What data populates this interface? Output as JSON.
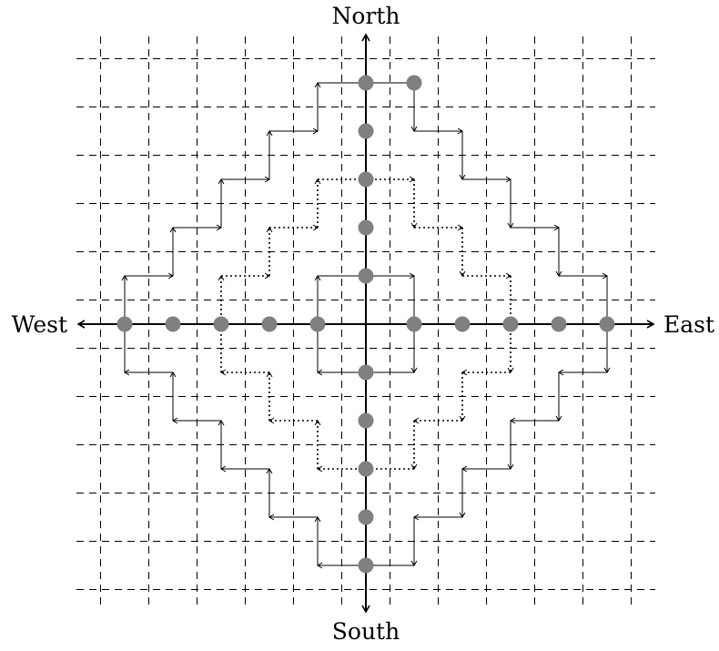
{
  "labels": {
    "north": "North",
    "south": "South",
    "east": "East",
    "west": "West"
  },
  "grid": {
    "min": -5,
    "max": 5,
    "step": 1
  },
  "colors": {
    "axis": "#000000",
    "grid": "#000000",
    "dot": "#808080",
    "path": "#000000"
  },
  "dots": {
    "north": [
      1,
      2,
      3,
      4,
      5
    ],
    "south": [
      1,
      2,
      3,
      4,
      5
    ],
    "east": [
      1,
      2,
      3,
      4,
      5
    ],
    "west": [
      1,
      2,
      3,
      4,
      5
    ],
    "extra": [
      [
        1,
        5
      ]
    ]
  },
  "paths": {
    "outer": {
      "style": "solid",
      "points": [
        [
          0,
          5
        ],
        [
          1,
          5
        ],
        [
          1,
          4
        ],
        [
          2,
          4
        ],
        [
          2,
          3
        ],
        [
          3,
          3
        ],
        [
          3,
          2
        ],
        [
          4,
          2
        ],
        [
          4,
          1
        ],
        [
          5,
          1
        ],
        [
          5,
          0
        ],
        [
          5,
          -1
        ],
        [
          4,
          -1
        ],
        [
          4,
          -2
        ],
        [
          3,
          -2
        ],
        [
          3,
          -3
        ],
        [
          2,
          -3
        ],
        [
          2,
          -4
        ],
        [
          1,
          -4
        ],
        [
          1,
          -5
        ],
        [
          0,
          -5
        ],
        [
          -1,
          -5
        ],
        [
          -1,
          -4
        ],
        [
          -2,
          -4
        ],
        [
          -2,
          -3
        ],
        [
          -3,
          -3
        ],
        [
          -3,
          -2
        ],
        [
          -4,
          -2
        ],
        [
          -4,
          -1
        ],
        [
          -5,
          -1
        ],
        [
          -5,
          0
        ],
        [
          -5,
          1
        ],
        [
          -4,
          1
        ],
        [
          -4,
          2
        ],
        [
          -3,
          2
        ],
        [
          -3,
          3
        ],
        [
          -2,
          3
        ],
        [
          -2,
          4
        ],
        [
          -1,
          4
        ],
        [
          -1,
          5
        ]
      ]
    },
    "middle": {
      "style": "dotted",
      "points": [
        [
          0,
          3
        ],
        [
          1,
          3
        ],
        [
          1,
          2
        ],
        [
          2,
          2
        ],
        [
          2,
          1
        ],
        [
          3,
          1
        ],
        [
          3,
          0
        ],
        [
          3,
          -1
        ],
        [
          2,
          -1
        ],
        [
          2,
          -2
        ],
        [
          1,
          -2
        ],
        [
          1,
          -3
        ],
        [
          0,
          -3
        ],
        [
          -1,
          -3
        ],
        [
          -1,
          -2
        ],
        [
          -2,
          -2
        ],
        [
          -2,
          -1
        ],
        [
          -3,
          -1
        ],
        [
          -3,
          0
        ],
        [
          -3,
          1
        ],
        [
          -2,
          1
        ],
        [
          -2,
          2
        ],
        [
          -1,
          2
        ],
        [
          -1,
          3
        ],
        [
          0,
          3
        ]
      ]
    },
    "inner": {
      "style": "solid",
      "points": [
        [
          0,
          1
        ],
        [
          1,
          1
        ],
        [
          1,
          0
        ],
        [
          1,
          -1
        ],
        [
          0,
          -1
        ],
        [
          -1,
          -1
        ],
        [
          -1,
          0
        ],
        [
          -1,
          1
        ],
        [
          0,
          1
        ]
      ]
    }
  }
}
